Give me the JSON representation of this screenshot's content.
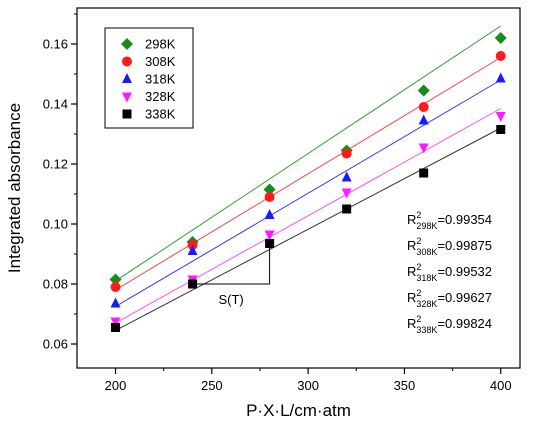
{
  "chart_data": {
    "type": "scatter",
    "xlabel": "P·X·L/cm·atm",
    "ylabel": "Integrated absorbance",
    "xlim": [
      180,
      410
    ],
    "ylim": [
      0.052,
      0.172
    ],
    "x_ticks": [
      200,
      250,
      300,
      350,
      400
    ],
    "y_ticks": [
      0.06,
      0.08,
      0.1,
      0.12,
      0.14,
      0.16
    ],
    "x": [
      200,
      240,
      280,
      320,
      360,
      400
    ],
    "grid": false,
    "legend_position": "top-left",
    "series": [
      {
        "name": "298K",
        "marker": "diamond",
        "color": "#1a8a1a",
        "fit_color": "#2e9e2e",
        "values": [
          0.0815,
          0.094,
          0.1115,
          0.1245,
          0.1445,
          0.162
        ],
        "fit": [
          0.081,
          0.166
        ],
        "r2": "0.99354"
      },
      {
        "name": "308K",
        "marker": "circle",
        "color": "#ff1a1a",
        "fit_color": "#ff4040",
        "values": [
          0.079,
          0.093,
          0.109,
          0.1235,
          0.139,
          0.156
        ],
        "fit": [
          0.078,
          0.1555
        ],
        "r2": "0.99875"
      },
      {
        "name": "318K",
        "marker": "triangle-up",
        "color": "#1a1aff",
        "fit_color": "#3a3aff",
        "values": [
          0.0735,
          0.091,
          0.103,
          0.1155,
          0.1345,
          0.1485
        ],
        "fit": [
          0.0725,
          0.148
        ],
        "r2": "0.99532"
      },
      {
        "name": "328K",
        "marker": "triangle-down",
        "color": "#ff1aff",
        "fit_color": "#ff50ff",
        "values": [
          0.0675,
          0.0815,
          0.0965,
          0.1105,
          0.1255,
          0.136
        ],
        "fit": [
          0.067,
          0.1385
        ],
        "r2": "0.99627"
      },
      {
        "name": "338K",
        "marker": "square",
        "color": "#000000",
        "fit_color": "#333333",
        "values": [
          0.0655,
          0.08,
          0.0935,
          0.105,
          0.117,
          0.1315
        ],
        "fit": [
          0.0645,
          0.132
        ],
        "r2": "0.99824"
      }
    ],
    "annotation": {
      "label": "S(T)",
      "triangle": {
        "x1": 240,
        "y1": 0.08,
        "x2": 280,
        "y2": 0.0935
      }
    },
    "r2_labels": [
      {
        "base": "R",
        "sup": "2",
        "sub": "298K",
        "value": "=0.99354"
      },
      {
        "base": "R",
        "sup": "2",
        "sub": "308K",
        "value": "=0.99875"
      },
      {
        "base": "R",
        "sup": "2",
        "sub": "318K",
        "value": "=0.99532"
      },
      {
        "base": "R",
        "sup": "2",
        "sub": "328K",
        "value": "=0.99627"
      },
      {
        "base": "R",
        "sup": "2",
        "sub": "338K",
        "value": "=0.99824"
      }
    ]
  }
}
